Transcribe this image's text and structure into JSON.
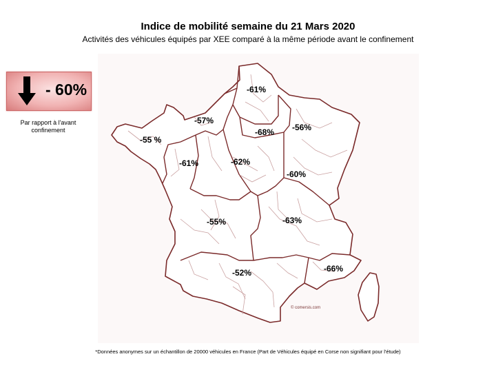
{
  "title": "Indice de mobilité semaine du 21 Mars 2020",
  "subtitle": "Activités des véhicules équipés par XEE comparé à la même période avant le confinement",
  "summary": {
    "value": "- 60%",
    "icon": "down-arrow-icon",
    "caption": "Par rapport à l'avant confinement",
    "box_color": "#f1b3b3"
  },
  "map": {
    "border_color": "#7a2a2a",
    "inner_border_color": "#c9a0a0",
    "credit": "© comersis.com",
    "regions": [
      {
        "name": "Hauts-de-France",
        "value": "-61%"
      },
      {
        "name": "Normandie",
        "value": "-57%"
      },
      {
        "name": "Île-de-France",
        "value": "-68%"
      },
      {
        "name": "Grand Est",
        "value": "-56%"
      },
      {
        "name": "Bretagne",
        "value": "-55 %"
      },
      {
        "name": "Pays de la Loire",
        "value": "-61%"
      },
      {
        "name": "Centre-Val de Loire",
        "value": "-62%"
      },
      {
        "name": "Bourgogne-Franche-Comté",
        "value": "-60%"
      },
      {
        "name": "Nouvelle-Aquitaine",
        "value": "-55%"
      },
      {
        "name": "Auvergne-Rhône-Alpes",
        "value": "-63%"
      },
      {
        "name": "Occitanie",
        "value": "-52%"
      },
      {
        "name": "Provence-Alpes-Côte d'Azur",
        "value": "-66%"
      }
    ]
  },
  "footnote": "*Données anonymes sur un échantillon de 20000 véhicules en France (Part de Véhicules équipé en Corse non signifiant pour l'étude)"
}
